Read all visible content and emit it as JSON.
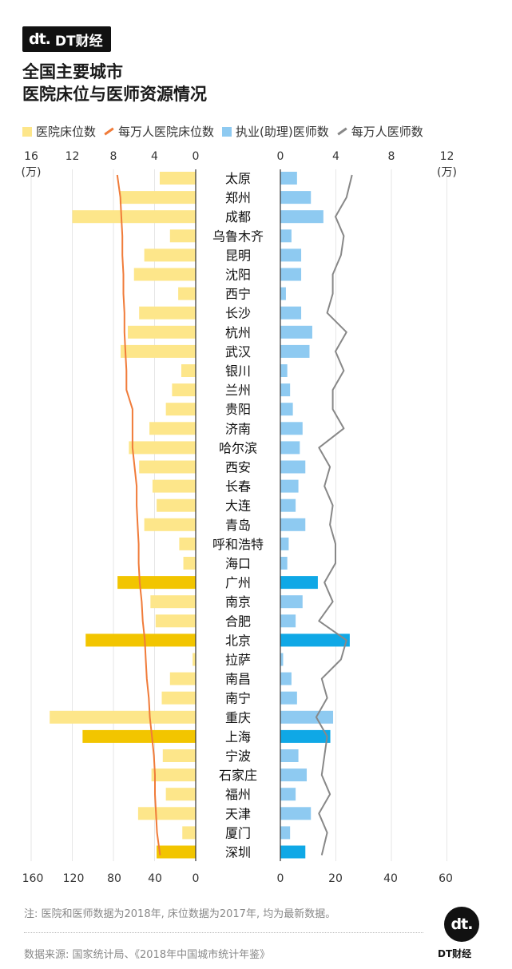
{
  "brand": {
    "mark": "dt.",
    "name": "DT财经"
  },
  "title": {
    "line1": "全国主要城市",
    "line2": "医院床位与医师资源情况"
  },
  "legend": [
    {
      "label": "医院床位数",
      "kind": "box",
      "color": "#fde68a"
    },
    {
      "label": "每万人医院床位数",
      "kind": "line",
      "color": "#f07b39"
    },
    {
      "label": "执业(助理)医师数",
      "kind": "box",
      "color": "#8ecaf1"
    },
    {
      "label": "每万人医师数",
      "kind": "line",
      "color": "#888888"
    }
  ],
  "colors": {
    "bed_bar": "#fde68a",
    "bed_bar_highlight": "#f2c500",
    "doc_bar": "#8ecaf1",
    "doc_bar_highlight": "#0fa8e6",
    "bed_line": "#f07b39",
    "doc_line": "#888888"
  },
  "chart_data": {
    "type": "bar",
    "categories": [
      "太原",
      "郑州",
      "成都",
      "乌鲁木齐",
      "昆明",
      "沈阳",
      "西宁",
      "长沙",
      "杭州",
      "武汉",
      "银川",
      "兰州",
      "贵阳",
      "济南",
      "哈尔滨",
      "西安",
      "长春",
      "大连",
      "青岛",
      "呼和浩特",
      "海口",
      "广州",
      "南京",
      "合肥",
      "北京",
      "拉萨",
      "南昌",
      "南宁",
      "重庆",
      "上海",
      "宁波",
      "石家庄",
      "福州",
      "天津",
      "厦门",
      "深圳"
    ],
    "highlight": [
      "广州",
      "北京",
      "上海",
      "深圳"
    ],
    "top_axis_left": {
      "ticks": [
        16,
        12,
        8,
        4,
        0
      ],
      "unit": "(万)",
      "range": [
        0,
        16
      ]
    },
    "top_axis_right": {
      "ticks": [
        0,
        4,
        8,
        12
      ],
      "unit": "(万)",
      "range": [
        0,
        12
      ]
    },
    "bottom_axis_left": {
      "ticks": [
        160,
        120,
        80,
        40,
        0
      ],
      "range": [
        0,
        160
      ]
    },
    "bottom_axis_right": {
      "ticks": [
        0,
        20,
        40,
        60
      ],
      "range": [
        0,
        60
      ]
    },
    "series": [
      {
        "name": "医院床位数",
        "axis": "top_axis_left",
        "values": [
          3.5,
          7.4,
          12.0,
          2.5,
          5.0,
          6.0,
          1.7,
          5.5,
          6.6,
          7.3,
          1.4,
          2.3,
          2.9,
          4.5,
          6.5,
          5.5,
          4.2,
          3.8,
          5.0,
          1.6,
          1.2,
          7.6,
          4.4,
          3.9,
          10.7,
          0.3,
          2.5,
          3.3,
          14.2,
          11.0,
          3.2,
          4.3,
          2.9,
          5.6,
          1.3,
          3.8
        ]
      },
      {
        "name": "每万人医院床位数",
        "axis": "bottom_axis_left",
        "values": [
          77,
          74,
          73,
          72,
          72,
          71,
          71,
          70,
          70,
          69,
          68,
          68,
          62,
          62,
          62,
          60,
          58,
          58,
          57,
          56,
          56,
          55,
          53,
          52,
          50,
          49,
          48,
          46,
          45,
          43,
          41,
          40,
          40,
          39,
          38,
          35
        ]
      },
      {
        "name": "执业(助理)医师数",
        "axis": "top_axis_right",
        "values": [
          1.2,
          2.2,
          3.1,
          0.8,
          1.5,
          1.5,
          0.4,
          1.5,
          2.3,
          2.1,
          0.5,
          0.7,
          0.9,
          1.6,
          1.4,
          1.8,
          1.3,
          1.1,
          1.8,
          0.6,
          0.5,
          2.7,
          1.6,
          1.1,
          5.0,
          0.2,
          0.8,
          1.2,
          3.8,
          3.6,
          1.3,
          1.9,
          1.1,
          2.2,
          0.7,
          1.8
        ]
      },
      {
        "name": "每万人医师数",
        "axis": "bottom_axis_right",
        "values": [
          26,
          24,
          20,
          23,
          22,
          19,
          19,
          17,
          24,
          20,
          23,
          19,
          19,
          23,
          14,
          18,
          16,
          19,
          18,
          20,
          20,
          16,
          19,
          14,
          24,
          22,
          15,
          17,
          13,
          17,
          16,
          15,
          18,
          14,
          17,
          15
        ]
      }
    ]
  },
  "footer": {
    "note": "注: 医院和医师数据为2018年, 床位数据为2017年, 均为最新数据。",
    "source": "数据来源: 国家统计局、《2018年中国城市统计年鉴》",
    "logo_mark": "dt.",
    "logo_text": "DT财经"
  }
}
